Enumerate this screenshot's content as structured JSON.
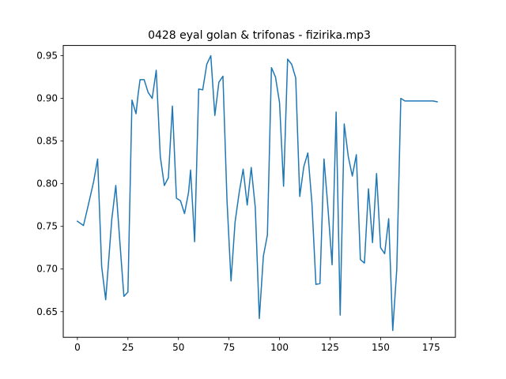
{
  "chart_data": {
    "type": "line",
    "title": "0428 eyal golan & trifonas - fizirika.mp3",
    "xlabel": "",
    "ylabel": "",
    "xlim": [
      -7,
      187
    ],
    "ylim": [
      0.62,
      0.962
    ],
    "xticks": [
      0,
      25,
      50,
      75,
      100,
      125,
      150,
      175
    ],
    "yticks": [
      0.65,
      0.7,
      0.75,
      0.8,
      0.85,
      0.9,
      0.95
    ],
    "ytick_labels": [
      "0.65",
      "0.70",
      "0.75",
      "0.80",
      "0.85",
      "0.90",
      "0.95"
    ],
    "grid": false,
    "legend": "none",
    "line_color": "#1f77b4",
    "series": [
      {
        "x": [
          0,
          3,
          5,
          8,
          10,
          12,
          14,
          17,
          19,
          21,
          23,
          25,
          27,
          29,
          30,
          31,
          33,
          35,
          37,
          39,
          41,
          43,
          45,
          47,
          49,
          51,
          53,
          55,
          56,
          58,
          60,
          62,
          64,
          66,
          68,
          70,
          72,
          74,
          76,
          78,
          80,
          82,
          84,
          86,
          88,
          90,
          92,
          94,
          96,
          98,
          100,
          102,
          104,
          106,
          108,
          110,
          112,
          114,
          116,
          118,
          120,
          122,
          124,
          126,
          128,
          130,
          132,
          134,
          136,
          138,
          140,
          142,
          144,
          146,
          148,
          150,
          152,
          154,
          156,
          158,
          160,
          162,
          164,
          166,
          168,
          170,
          172,
          174,
          176,
          178
        ],
        "y": [
          0.756,
          0.751,
          0.771,
          0.802,
          0.829,
          0.703,
          0.664,
          0.758,
          0.798,
          0.732,
          0.668,
          0.673,
          0.898,
          0.882,
          0.904,
          0.922,
          0.922,
          0.907,
          0.9,
          0.933,
          0.832,
          0.798,
          0.807,
          0.891,
          0.783,
          0.78,
          0.765,
          0.79,
          0.816,
          0.732,
          0.911,
          0.91,
          0.94,
          0.95,
          0.88,
          0.919,
          0.926,
          0.781,
          0.686,
          0.755,
          0.789,
          0.817,
          0.775,
          0.819,
          0.772,
          0.642,
          0.715,
          0.74,
          0.936,
          0.925,
          0.895,
          0.797,
          0.946,
          0.94,
          0.924,
          0.785,
          0.82,
          0.836,
          0.778,
          0.682,
          0.683,
          0.829,
          0.77,
          0.705,
          0.884,
          0.646,
          0.87,
          0.832,
          0.809,
          0.834,
          0.711,
          0.707,
          0.794,
          0.731,
          0.812,
          0.725,
          0.718,
          0.759,
          0.628,
          0.7,
          0.9,
          0.897,
          0.897,
          0.897,
          0.897,
          0.897,
          0.897,
          0.897,
          0.897,
          0.896
        ]
      }
    ]
  }
}
